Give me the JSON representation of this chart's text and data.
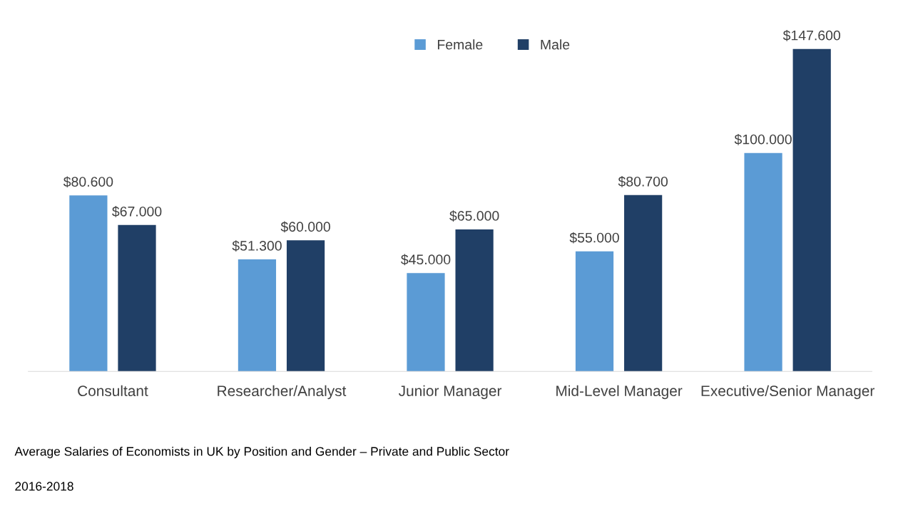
{
  "chart_data": {
    "type": "bar",
    "categories": [
      "Consultant",
      "Researcher/Analyst",
      "Junior Manager",
      "Mid-Level Manager",
      "Executive/Senior Manager"
    ],
    "series": [
      {
        "name": "Female",
        "color": "#5b9bd5",
        "values": [
          80600,
          51300,
          45000,
          55000,
          100000
        ],
        "value_labels": [
          "$80.600",
          "$51.300",
          "$45.000",
          "$55.000",
          "$100.000"
        ]
      },
      {
        "name": "Male",
        "color": "#203f66",
        "values": [
          67000,
          60000,
          65000,
          80700,
          147600
        ],
        "value_labels": [
          "$67.000",
          "$60.000",
          "$65.000",
          "$80.700",
          "$147.600"
        ]
      }
    ],
    "tick_labels": "x",
    "grid": false,
    "legend": "top",
    "annotations": [
      "Average Salaries of Economists in UK by Position and Gender – Private and Public Sector",
      "2016-2018"
    ]
  }
}
